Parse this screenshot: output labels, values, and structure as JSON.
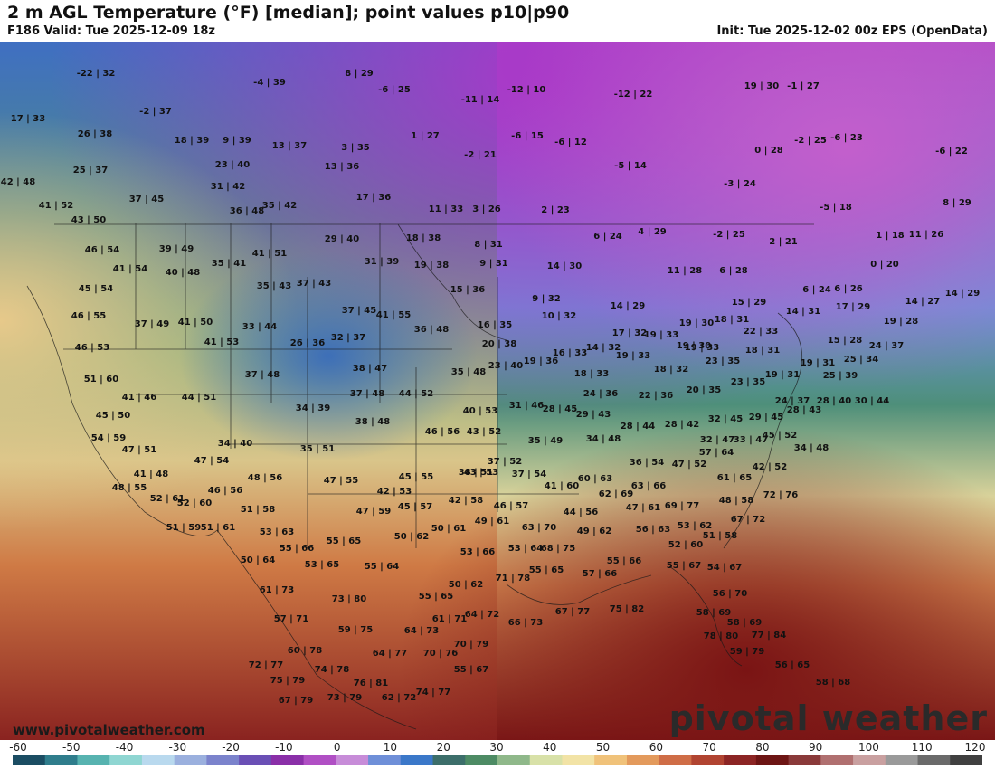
{
  "header": {
    "title": "2 m AGL Temperature (°F) [median]; point values p10|p90",
    "valid": "F186 Valid: Tue 2025-12-09 18z",
    "init": "Init: Tue 2025-12-02 00z EPS (OpenData)"
  },
  "credit": "www.pivotalweather.com",
  "brand": "pivotal weather",
  "colorbar": {
    "ticks": [
      "-60",
      "-50",
      "-40",
      "-30",
      "-20",
      "-10",
      "0",
      "10",
      "20",
      "30",
      "40",
      "50",
      "60",
      "70",
      "80",
      "90",
      "100",
      "110",
      "120"
    ],
    "colors": [
      "#1b4d63",
      "#2f7d8c",
      "#57b3b0",
      "#8fd6d2",
      "#b9d9ee",
      "#9bb0de",
      "#7b83cc",
      "#6a4fb5",
      "#8a2fa8",
      "#b04fc4",
      "#c78cd8",
      "#6f8fd8",
      "#3b78c9",
      "#3c6e6a",
      "#4d8b64",
      "#8fb88a",
      "#d8e1a8",
      "#f2e3a6",
      "#f0c27a",
      "#e39a5c",
      "#cf6d47",
      "#b14431",
      "#8c2524",
      "#6d1514",
      "#8a3a3a",
      "#b07070",
      "#c9a0a0",
      "#9a9a9a",
      "#6a6a6a",
      "#404040"
    ]
  },
  "point_values": [
    {
      "label": "-22 | 32"
    },
    {
      "label": "-4 | 39"
    },
    {
      "label": "8 | 29"
    },
    {
      "label": "-6 | 25"
    },
    {
      "label": "-11 | 14"
    },
    {
      "label": "-12 | 10"
    },
    {
      "label": "-12 | 22"
    },
    {
      "label": "19 | 30"
    },
    {
      "label": "-1 | 27"
    },
    {
      "label": "17 | 33"
    },
    {
      "label": "-2 | 37"
    },
    {
      "label": "26 | 38"
    },
    {
      "label": "18 | 39"
    },
    {
      "label": "9 | 39"
    },
    {
      "label": "13 | 37"
    },
    {
      "label": "3 | 35"
    },
    {
      "label": "1 | 27"
    },
    {
      "label": "-6 | 15"
    },
    {
      "label": "-6 | 12"
    },
    {
      "label": "0 | 28"
    },
    {
      "label": "-2 | 25"
    },
    {
      "label": "-6 | 23"
    },
    {
      "label": "-6 | 22"
    },
    {
      "label": "-2 | 21"
    },
    {
      "label": "25 | 37"
    },
    {
      "label": "23 | 40"
    },
    {
      "label": "13 | 36"
    },
    {
      "label": "-5 | 14"
    },
    {
      "label": "42 | 48"
    },
    {
      "label": "31 | 42"
    },
    {
      "label": "-3 | 24"
    },
    {
      "label": "37 | 45"
    },
    {
      "label": "17 | 36"
    },
    {
      "label": "41 | 52"
    },
    {
      "label": "35 | 42"
    },
    {
      "label": "36 | 48"
    },
    {
      "label": "11 | 33"
    },
    {
      "label": "3 | 26"
    },
    {
      "label": "2 | 23"
    },
    {
      "label": "-5 | 18"
    },
    {
      "label": "8 | 29"
    },
    {
      "label": "43 | 50"
    },
    {
      "label": "29 | 40"
    },
    {
      "label": "18 | 38"
    },
    {
      "label": "8 | 31"
    },
    {
      "label": "6 | 24"
    },
    {
      "label": "4 | 29"
    },
    {
      "label": "-2 | 25"
    },
    {
      "label": "2 | 21"
    },
    {
      "label": "1 | 18"
    },
    {
      "label": "11 | 26"
    },
    {
      "label": "46 | 54"
    },
    {
      "label": "39 | 49"
    },
    {
      "label": "41 | 51"
    },
    {
      "label": "31 | 39"
    },
    {
      "label": "19 | 38"
    },
    {
      "label": "9 | 31"
    },
    {
      "label": "14 | 30"
    },
    {
      "label": "11 | 28"
    },
    {
      "label": "6 | 28"
    },
    {
      "label": "0 | 20"
    },
    {
      "label": "41 | 54"
    },
    {
      "label": "40 | 48"
    },
    {
      "label": "35 | 41"
    },
    {
      "label": "45 | 54"
    },
    {
      "label": "35 | 43"
    },
    {
      "label": "37 | 43"
    },
    {
      "label": "15 | 36"
    },
    {
      "label": "9 | 32"
    },
    {
      "label": "6 | 24"
    },
    {
      "label": "6 | 26"
    },
    {
      "label": "14 | 27"
    },
    {
      "label": "14 | 29"
    },
    {
      "label": "46 | 55"
    },
    {
      "label": "37 | 49"
    },
    {
      "label": "41 | 50"
    },
    {
      "label": "33 | 44"
    },
    {
      "label": "37 | 45"
    },
    {
      "label": "41 | 55"
    },
    {
      "label": "10 | 32"
    },
    {
      "label": "14 | 29"
    },
    {
      "label": "15 | 29"
    },
    {
      "label": "14 | 31"
    },
    {
      "label": "17 | 29"
    },
    {
      "label": "19 | 28"
    },
    {
      "label": "46 | 53"
    },
    {
      "label": "41 | 53"
    },
    {
      "label": "26 | 36"
    },
    {
      "label": "32 | 37"
    },
    {
      "label": "36 | 48"
    },
    {
      "label": "16 | 35"
    },
    {
      "label": "19 | 30"
    },
    {
      "label": "18 | 31"
    },
    {
      "label": "22 | 33"
    },
    {
      "label": "15 | 28"
    },
    {
      "label": "24 | 37"
    },
    {
      "label": "20 | 38"
    },
    {
      "label": "17 | 32"
    },
    {
      "label": "19 | 33"
    },
    {
      "label": "19 | 30"
    },
    {
      "label": "14 | 32"
    },
    {
      "label": "19 | 33"
    },
    {
      "label": "19 | 33"
    },
    {
      "label": "16 | 33"
    },
    {
      "label": "18 | 31"
    },
    {
      "label": "25 | 34"
    },
    {
      "label": "51 | 60"
    },
    {
      "label": "37 | 48"
    },
    {
      "label": "38 | 47"
    },
    {
      "label": "35 | 48"
    },
    {
      "label": "23 | 40"
    },
    {
      "label": "19 | 36"
    },
    {
      "label": "18 | 33"
    },
    {
      "label": "18 | 32"
    },
    {
      "label": "23 | 35"
    },
    {
      "label": "19 | 31"
    },
    {
      "label": "19 | 31"
    },
    {
      "label": "25 | 39"
    },
    {
      "label": "41 | 46"
    },
    {
      "label": "44 | 51"
    },
    {
      "label": "37 | 48"
    },
    {
      "label": "44 | 52"
    },
    {
      "label": "24 | 36"
    },
    {
      "label": "22 | 36"
    },
    {
      "label": "20 | 35"
    },
    {
      "label": "23 | 35"
    },
    {
      "label": "24 | 37"
    },
    {
      "label": "28 | 40"
    },
    {
      "label": "30 | 44"
    },
    {
      "label": "45 | 50"
    },
    {
      "label": "34 | 39"
    },
    {
      "label": "38 | 48"
    },
    {
      "label": "40 | 53"
    },
    {
      "label": "31 | 46"
    },
    {
      "label": "28 | 45"
    },
    {
      "label": "29 | 43"
    },
    {
      "label": "28 | 42"
    },
    {
      "label": "32 | 45"
    },
    {
      "label": "29 | 45"
    },
    {
      "label": "28 | 43"
    },
    {
      "label": "54 | 59"
    },
    {
      "label": "46 | 56"
    },
    {
      "label": "43 | 52"
    },
    {
      "label": "35 | 49"
    },
    {
      "label": "34 | 48"
    },
    {
      "label": "28 | 44"
    },
    {
      "label": "32 | 47"
    },
    {
      "label": "33 | 47"
    },
    {
      "label": "45 | 52"
    },
    {
      "label": "47 | 51"
    },
    {
      "label": "34 | 40"
    },
    {
      "label": "35 | 51"
    },
    {
      "label": "34 | 48"
    },
    {
      "label": "57 | 64"
    },
    {
      "label": "47 | 54"
    },
    {
      "label": "37 | 52"
    },
    {
      "label": "38 | 51"
    },
    {
      "label": "36 | 54"
    },
    {
      "label": "47 | 52"
    },
    {
      "label": "42 | 52"
    },
    {
      "label": "41 | 48"
    },
    {
      "label": "48 | 56"
    },
    {
      "label": "47 | 55"
    },
    {
      "label": "45 | 55"
    },
    {
      "label": "43 | 53"
    },
    {
      "label": "37 | 54"
    },
    {
      "label": "60 | 63"
    },
    {
      "label": "61 | 65"
    },
    {
      "label": "48 | 55"
    },
    {
      "label": "46 | 56"
    },
    {
      "label": "42 | 53"
    },
    {
      "label": "41 | 60"
    },
    {
      "label": "63 | 66"
    },
    {
      "label": "72 | 76"
    },
    {
      "label": "52 | 61"
    },
    {
      "label": "52 | 60"
    },
    {
      "label": "45 | 57"
    },
    {
      "label": "42 | 58"
    },
    {
      "label": "62 | 69"
    },
    {
      "label": "48 | 58"
    },
    {
      "label": "51 | 58"
    },
    {
      "label": "47 | 59"
    },
    {
      "label": "46 | 57"
    },
    {
      "label": "44 | 56"
    },
    {
      "label": "47 | 61"
    },
    {
      "label": "69 | 77"
    },
    {
      "label": "67 | 72"
    },
    {
      "label": "51 | 59"
    },
    {
      "label": "51 | 61"
    },
    {
      "label": "49 | 61"
    },
    {
      "label": "63 | 70"
    },
    {
      "label": "53 | 62"
    },
    {
      "label": "53 | 63"
    },
    {
      "label": "50 | 62"
    },
    {
      "label": "50 | 61"
    },
    {
      "label": "49 | 62"
    },
    {
      "label": "56 | 63"
    },
    {
      "label": "51 | 58"
    },
    {
      "label": "55 | 66"
    },
    {
      "label": "55 | 65"
    },
    {
      "label": "53 | 66"
    },
    {
      "label": "53 | 64"
    },
    {
      "label": "68 | 75"
    },
    {
      "label": "52 | 60"
    },
    {
      "label": "50 | 64"
    },
    {
      "label": "53 | 65"
    },
    {
      "label": "55 | 64"
    },
    {
      "label": "55 | 66"
    },
    {
      "label": "55 | 67"
    },
    {
      "label": "54 | 67"
    },
    {
      "label": "50 | 62"
    },
    {
      "label": "71 | 78"
    },
    {
      "label": "55 | 65"
    },
    {
      "label": "57 | 66"
    },
    {
      "label": "61 | 73"
    },
    {
      "label": "73 | 80"
    },
    {
      "label": "55 | 65"
    },
    {
      "label": "56 | 70"
    },
    {
      "label": "57 | 71"
    },
    {
      "label": "59 | 75"
    },
    {
      "label": "64 | 73"
    },
    {
      "label": "61 | 71"
    },
    {
      "label": "64 | 72"
    },
    {
      "label": "66 | 73"
    },
    {
      "label": "67 | 77"
    },
    {
      "label": "75 | 82"
    },
    {
      "label": "58 | 69"
    },
    {
      "label": "58 | 69"
    },
    {
      "label": "60 | 78"
    },
    {
      "label": "64 | 77"
    },
    {
      "label": "70 | 76"
    },
    {
      "label": "70 | 79"
    },
    {
      "label": "78 | 80"
    },
    {
      "label": "77 | 84"
    },
    {
      "label": "59 | 79"
    },
    {
      "label": "72 | 77"
    },
    {
      "label": "74 | 78"
    },
    {
      "label": "55 | 67"
    },
    {
      "label": "56 | 65"
    },
    {
      "label": "75 | 79"
    },
    {
      "label": "76 | 81"
    },
    {
      "label": "74 | 77"
    },
    {
      "label": "58 | 68"
    },
    {
      "label": "67 | 79"
    },
    {
      "label": "73 | 79"
    },
    {
      "label": "62 | 72"
    }
  ]
}
